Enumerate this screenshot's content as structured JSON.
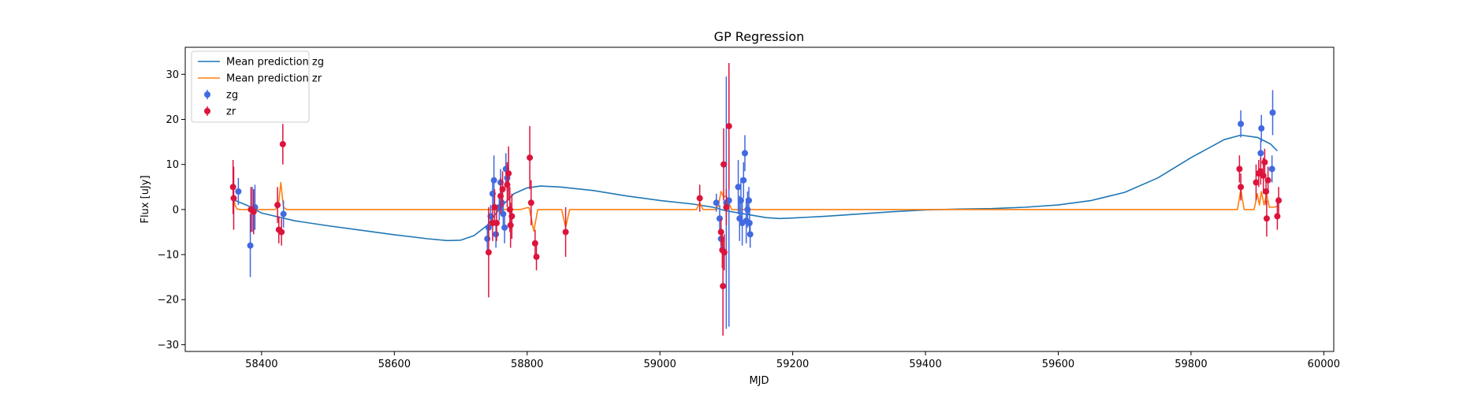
{
  "chart_data": {
    "type": "scatter",
    "title": "GP Regression",
    "xlabel": "MJD",
    "ylabel": "Flux [uJy]",
    "xlim": [
      58285,
      60015
    ],
    "ylim": [
      -31.5,
      36
    ],
    "xticks": [
      58400,
      58600,
      58800,
      59000,
      59200,
      59400,
      59600,
      59800,
      60000
    ],
    "yticks": [
      -30,
      -20,
      -10,
      0,
      10,
      20,
      30
    ],
    "grid": false,
    "legend_position": "top-left",
    "legend": [
      {
        "label": "Mean prediction zg",
        "kind": "line",
        "color": "#1f77b4"
      },
      {
        "label": "Mean prediction zr",
        "kind": "line",
        "color": "#ff7f0e"
      },
      {
        "label": "zg",
        "kind": "errorbar",
        "color": "#4169e1"
      },
      {
        "label": "zr",
        "kind": "errorbar",
        "color": "#dc143c"
      }
    ],
    "lines": [
      {
        "name": "Mean prediction zg",
        "color": "#1f77b4",
        "points": [
          [
            58360,
            2
          ],
          [
            58380,
            0.8
          ],
          [
            58400,
            -0.8
          ],
          [
            58450,
            -2.5
          ],
          [
            58500,
            -3.6
          ],
          [
            58550,
            -4.6
          ],
          [
            58600,
            -5.6
          ],
          [
            58650,
            -6.5
          ],
          [
            58680,
            -6.9
          ],
          [
            58700,
            -6.8
          ],
          [
            58720,
            -5.8
          ],
          [
            58740,
            -3.5
          ],
          [
            58760,
            0.5
          ],
          [
            58780,
            3.5
          ],
          [
            58800,
            4.8
          ],
          [
            58820,
            5.2
          ],
          [
            58850,
            5
          ],
          [
            58900,
            4.2
          ],
          [
            58950,
            3
          ],
          [
            59000,
            2
          ],
          [
            59050,
            1.2
          ],
          [
            59080,
            0.5
          ],
          [
            59100,
            -0.3
          ],
          [
            59120,
            -0.8
          ],
          [
            59140,
            -1.3
          ],
          [
            59160,
            -1.8
          ],
          [
            59180,
            -2
          ],
          [
            59200,
            -1.9
          ],
          [
            59250,
            -1.5
          ],
          [
            59300,
            -1
          ],
          [
            59350,
            -0.5
          ],
          [
            59400,
            -0.1
          ],
          [
            59450,
            0.1
          ],
          [
            59500,
            0.2
          ],
          [
            59550,
            0.5
          ],
          [
            59600,
            1
          ],
          [
            59650,
            2
          ],
          [
            59700,
            3.8
          ],
          [
            59750,
            7
          ],
          [
            59800,
            11.5
          ],
          [
            59850,
            15.5
          ],
          [
            59875,
            16.5
          ],
          [
            59900,
            16
          ],
          [
            59920,
            14.5
          ],
          [
            59930,
            13
          ]
        ]
      },
      {
        "name": "Mean prediction zr",
        "color": "#ff7f0e",
        "points": [
          [
            58358,
            2.6
          ],
          [
            58360,
            1
          ],
          [
            58363,
            0.1
          ],
          [
            58368,
            0
          ],
          [
            58420,
            0
          ],
          [
            58425,
            0.5
          ],
          [
            58429,
            6
          ],
          [
            58433,
            0.5
          ],
          [
            58438,
            0
          ],
          [
            58790,
            0
          ],
          [
            58800,
            0.4
          ],
          [
            58803,
            0.4
          ],
          [
            58810,
            -4.8
          ],
          [
            58816,
            0
          ],
          [
            58852,
            0
          ],
          [
            58858,
            -4
          ],
          [
            58864,
            0
          ],
          [
            59055,
            0
          ],
          [
            59060,
            1.5
          ],
          [
            59065,
            0
          ],
          [
            59085,
            0
          ],
          [
            59088,
            0.8
          ],
          [
            59092,
            4
          ],
          [
            59096,
            2.8
          ],
          [
            59100,
            3
          ],
          [
            59104,
            1.5
          ],
          [
            59108,
            0
          ],
          [
            59870,
            0
          ],
          [
            59875,
            4.5
          ],
          [
            59880,
            0
          ],
          [
            59895,
            0
          ],
          [
            59900,
            3.5
          ],
          [
            59903,
            1
          ],
          [
            59906,
            4
          ],
          [
            59910,
            1
          ],
          [
            59914,
            3.5
          ],
          [
            59918,
            0.5
          ],
          [
            59925,
            0.5
          ],
          [
            59932,
            0.8
          ]
        ]
      }
    ],
    "series": [
      {
        "name": "zg",
        "color": "#4169e1",
        "points": [
          {
            "x": 58365,
            "y": 4,
            "err": 3
          },
          {
            "x": 58383,
            "y": -8,
            "err": 7
          },
          {
            "x": 58386,
            "y": 0,
            "err": 5
          },
          {
            "x": 58390,
            "y": 0.5,
            "err": 5
          },
          {
            "x": 58433,
            "y": -1,
            "err": 3
          },
          {
            "x": 58740,
            "y": -6.5,
            "err": 3
          },
          {
            "x": 58742,
            "y": -4,
            "err": 3
          },
          {
            "x": 58745,
            "y": -1.5,
            "err": 2.5
          },
          {
            "x": 58748,
            "y": 3.5,
            "err": 3
          },
          {
            "x": 58750,
            "y": 6.5,
            "err": 5.5
          },
          {
            "x": 58753,
            "y": -5.5,
            "err": 3
          },
          {
            "x": 58758,
            "y": 0.5,
            "err": 3
          },
          {
            "x": 58760,
            "y": 6,
            "err": 3
          },
          {
            "x": 58762,
            "y": 1.5,
            "err": 3
          },
          {
            "x": 58764,
            "y": -1,
            "err": 3
          },
          {
            "x": 58766,
            "y": -4,
            "err": 3.5
          },
          {
            "x": 58768,
            "y": 9,
            "err": 3.5
          },
          {
            "x": 58770,
            "y": 7,
            "err": 3
          },
          {
            "x": 59085,
            "y": 1.5,
            "err": 2
          },
          {
            "x": 59090,
            "y": -2,
            "err": 3
          },
          {
            "x": 59092,
            "y": -6.5,
            "err": 3
          },
          {
            "x": 59100,
            "y": 1.5,
            "err": 28
          },
          {
            "x": 59104,
            "y": 2,
            "err": 28
          },
          {
            "x": 59118,
            "y": 5,
            "err": 6
          },
          {
            "x": 59120,
            "y": -2,
            "err": 5
          },
          {
            "x": 59122,
            "y": 2,
            "err": 5
          },
          {
            "x": 59124,
            "y": -3,
            "err": 5
          },
          {
            "x": 59126,
            "y": 6.5,
            "err": 4
          },
          {
            "x": 59128,
            "y": 12.5,
            "err": 4
          },
          {
            "x": 59130,
            "y": -2.5,
            "err": 5
          },
          {
            "x": 59132,
            "y": 0,
            "err": 4
          },
          {
            "x": 59134,
            "y": 2,
            "err": 3
          },
          {
            "x": 59135,
            "y": -3,
            "err": 3
          },
          {
            "x": 59136,
            "y": -5.5,
            "err": 3
          },
          {
            "x": 59875,
            "y": 19,
            "err": 3
          },
          {
            "x": 59905,
            "y": 12.5,
            "err": 3
          },
          {
            "x": 59906,
            "y": 18,
            "err": 3
          },
          {
            "x": 59922,
            "y": 9,
            "err": 3
          },
          {
            "x": 59923,
            "y": 21.5,
            "err": 5
          }
        ]
      },
      {
        "name": "zr",
        "color": "#dc143c",
        "points": [
          {
            "x": 58357,
            "y": 5,
            "err": 6
          },
          {
            "x": 58358,
            "y": 2.5,
            "err": 7
          },
          {
            "x": 58384,
            "y": 0,
            "err": 5
          },
          {
            "x": 58388,
            "y": -0.5,
            "err": 5
          },
          {
            "x": 58424,
            "y": 1,
            "err": 4
          },
          {
            "x": 58426,
            "y": -4.5,
            "err": 3
          },
          {
            "x": 58430,
            "y": -5,
            "err": 3
          },
          {
            "x": 58432,
            "y": 14.5,
            "err": 4.5
          },
          {
            "x": 58742,
            "y": -9.5,
            "err": 10
          },
          {
            "x": 58748,
            "y": -3,
            "err": 4
          },
          {
            "x": 58751,
            "y": 0.5,
            "err": 4
          },
          {
            "x": 58754,
            "y": -3,
            "err": 4
          },
          {
            "x": 58760,
            "y": 3,
            "err": 4
          },
          {
            "x": 58763,
            "y": 4.5,
            "err": 4
          },
          {
            "x": 58770,
            "y": 5.5,
            "err": 5
          },
          {
            "x": 58772,
            "y": 8,
            "err": 6
          },
          {
            "x": 58774,
            "y": 0,
            "err": 5
          },
          {
            "x": 58775,
            "y": -3.5,
            "err": 5
          },
          {
            "x": 58777,
            "y": -1.5,
            "err": 5
          },
          {
            "x": 58804,
            "y": 11.5,
            "err": 7
          },
          {
            "x": 58806,
            "y": 1.5,
            "err": 5
          },
          {
            "x": 58812,
            "y": -7.5,
            "err": 3
          },
          {
            "x": 58814,
            "y": -10.5,
            "err": 3
          },
          {
            "x": 58858,
            "y": -5,
            "err": 5.5
          },
          {
            "x": 59060,
            "y": 2.5,
            "err": 3
          },
          {
            "x": 59092,
            "y": -5,
            "err": 3
          },
          {
            "x": 59094,
            "y": -9,
            "err": 4
          },
          {
            "x": 59095,
            "y": -17,
            "err": 11
          },
          {
            "x": 59096,
            "y": 10,
            "err": 8
          },
          {
            "x": 59097,
            "y": -9.5,
            "err": 4
          },
          {
            "x": 59100,
            "y": 0.5,
            "err": 4
          },
          {
            "x": 59104,
            "y": 18.5,
            "err": 14
          },
          {
            "x": 59873,
            "y": 9,
            "err": 3
          },
          {
            "x": 59875,
            "y": 5,
            "err": 3
          },
          {
            "x": 59898,
            "y": 6,
            "err": 4
          },
          {
            "x": 59902,
            "y": 8,
            "err": 3
          },
          {
            "x": 59905,
            "y": 8.5,
            "err": 3
          },
          {
            "x": 59909,
            "y": 7.5,
            "err": 4
          },
          {
            "x": 59911,
            "y": 10.5,
            "err": 3
          },
          {
            "x": 59913,
            "y": 4,
            "err": 3
          },
          {
            "x": 59914,
            "y": -2,
            "err": 4
          },
          {
            "x": 59916,
            "y": 6.5,
            "err": 3
          },
          {
            "x": 59930,
            "y": -1.5,
            "err": 3
          },
          {
            "x": 59932,
            "y": 2,
            "err": 3
          }
        ]
      }
    ]
  }
}
